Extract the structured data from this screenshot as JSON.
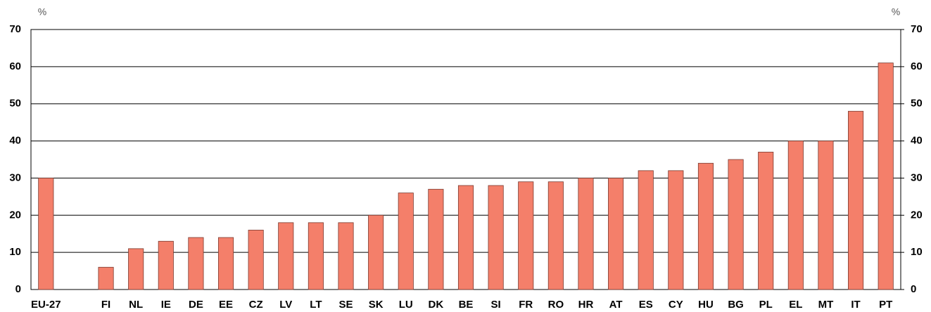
{
  "chart_data": {
    "type": "bar",
    "y_label": "%",
    "y2_label": "%",
    "categories": [
      "EU-27",
      null,
      "FI",
      "NL",
      "IE",
      "DE",
      "EE",
      "CZ",
      "LV",
      "LT",
      "SE",
      "SK",
      "LU",
      "DK",
      "BE",
      "SI",
      "FR",
      "RO",
      "HR",
      "AT",
      "ES",
      "CY",
      "HU",
      "BG",
      "PL",
      "EL",
      "MT",
      "IT",
      "PT"
    ],
    "values": [
      30,
      null,
      6,
      11,
      13,
      14,
      14,
      16,
      18,
      18,
      18,
      20,
      26,
      27,
      28,
      28,
      29,
      29,
      30,
      30,
      32,
      32,
      34,
      35,
      37,
      40,
      40,
      48,
      61
    ],
    "color": "#f47f6a",
    "ylim": [
      0,
      70
    ],
    "yticks": [
      0,
      10,
      20,
      30,
      40,
      50,
      60,
      70
    ],
    "y2lim": [
      0,
      70
    ],
    "y2ticks": [
      0,
      10,
      20,
      30,
      40,
      50,
      60,
      70
    ],
    "grid": true
  }
}
